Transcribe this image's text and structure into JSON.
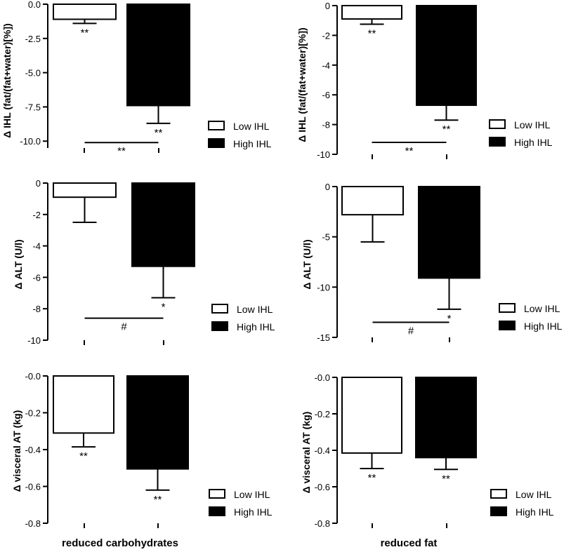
{
  "chart_data": [
    {
      "type": "bar",
      "ylabel": "Δ IHL (fat/(fat+water)[%])",
      "ylim": [
        -10.5,
        0
      ],
      "ticks": [
        0,
        -2.5,
        -5,
        -7.5,
        -10
      ],
      "tick_labels": [
        "0.0",
        "-2.5",
        "-5.0",
        "-7.5",
        "-10.0"
      ],
      "series": [
        {
          "name": "Low IHL",
          "value": -1.1,
          "error": 0.3,
          "sig": "**",
          "color": "#ffffff"
        },
        {
          "name": "High IHL",
          "value": -7.4,
          "error": 1.3,
          "sig": "**",
          "color": "#000000"
        }
      ],
      "comparison": {
        "label": "**",
        "y": -10.1
      },
      "legend": [
        "Low IHL",
        "High IHL"
      ]
    },
    {
      "type": "bar",
      "ylabel": "Δ IHL (fat/(fat+water)[%])",
      "ylim": [
        -10,
        0
      ],
      "ticks": [
        0,
        -2,
        -4,
        -6,
        -8,
        -10
      ],
      "tick_labels": [
        "0",
        "-2",
        "-4",
        "-6",
        "-8",
        "-10"
      ],
      "series": [
        {
          "name": "Low IHL",
          "value": -0.9,
          "error": 0.35,
          "sig": "**",
          "color": "#ffffff"
        },
        {
          "name": "High IHL",
          "value": -6.7,
          "error": 1.0,
          "sig": "**",
          "color": "#000000"
        }
      ],
      "comparison": {
        "label": "**",
        "y": -9.2
      },
      "legend": [
        "Low IHL",
        "High IHL"
      ]
    },
    {
      "type": "bar",
      "ylabel": "Δ ALT (U/l)",
      "ylim": [
        -10,
        0
      ],
      "ticks": [
        0,
        -2,
        -4,
        -6,
        -8,
        -10
      ],
      "tick_labels": [
        "0",
        "-2",
        "-4",
        "-6",
        "-8",
        "-10"
      ],
      "series": [
        {
          "name": "Low IHL",
          "value": -0.9,
          "error": 1.6,
          "sig": "",
          "color": "#ffffff"
        },
        {
          "name": "High IHL",
          "value": -5.3,
          "error": 2.0,
          "sig": "*",
          "color": "#000000"
        }
      ],
      "comparison": {
        "label": "#",
        "y": -8.6
      },
      "legend": [
        "Low IHL",
        "High IHL"
      ]
    },
    {
      "type": "bar",
      "ylabel": "Δ ALT (U/l)",
      "ylim": [
        -15,
        0
      ],
      "ticks": [
        0,
        -5,
        -10,
        -15
      ],
      "tick_labels": [
        "0",
        "-5",
        "-10",
        "-15"
      ],
      "series": [
        {
          "name": "Low IHL",
          "value": -2.8,
          "error": 2.7,
          "sig": "",
          "color": "#ffffff"
        },
        {
          "name": "High IHL",
          "value": -9.1,
          "error": 3.1,
          "sig": "*",
          "color": "#000000"
        }
      ],
      "comparison": {
        "label": "#",
        "y": -13.5
      },
      "legend": [
        "Low IHL",
        "High IHL"
      ]
    },
    {
      "type": "bar",
      "ylabel": "Δ visceral AT (kg)",
      "ylim": [
        -0.8,
        0
      ],
      "ticks": [
        0,
        -0.2,
        -0.4,
        -0.6,
        -0.8
      ],
      "tick_labels": [
        "-0.0",
        "-0.2",
        "-0.4",
        "-0.6",
        "-0.8"
      ],
      "series": [
        {
          "name": "Low IHL",
          "value": -0.31,
          "error": 0.075,
          "sig": "**",
          "color": "#ffffff"
        },
        {
          "name": "High IHL",
          "value": -0.505,
          "error": 0.115,
          "sig": "**",
          "color": "#000000"
        }
      ],
      "comparison": null,
      "legend": [
        "Low IHL",
        "High IHL"
      ],
      "xlabel": "reduced carbohydrates"
    },
    {
      "type": "bar",
      "ylabel": "Δ visceral AT (kg)",
      "ylim": [
        -0.8,
        0
      ],
      "ticks": [
        0,
        -0.2,
        -0.4,
        -0.6,
        -0.8
      ],
      "tick_labels": [
        "-0.0",
        "-0.2",
        "-0.4",
        "-0.6",
        "-0.8"
      ],
      "series": [
        {
          "name": "Low IHL",
          "value": -0.415,
          "error": 0.085,
          "sig": "**",
          "color": "#ffffff"
        },
        {
          "name": "High IHL",
          "value": -0.44,
          "error": 0.065,
          "sig": "**",
          "color": "#000000"
        }
      ],
      "comparison": null,
      "legend": [
        "Low IHL",
        "High IHL"
      ],
      "xlabel": "reduced fat"
    }
  ]
}
